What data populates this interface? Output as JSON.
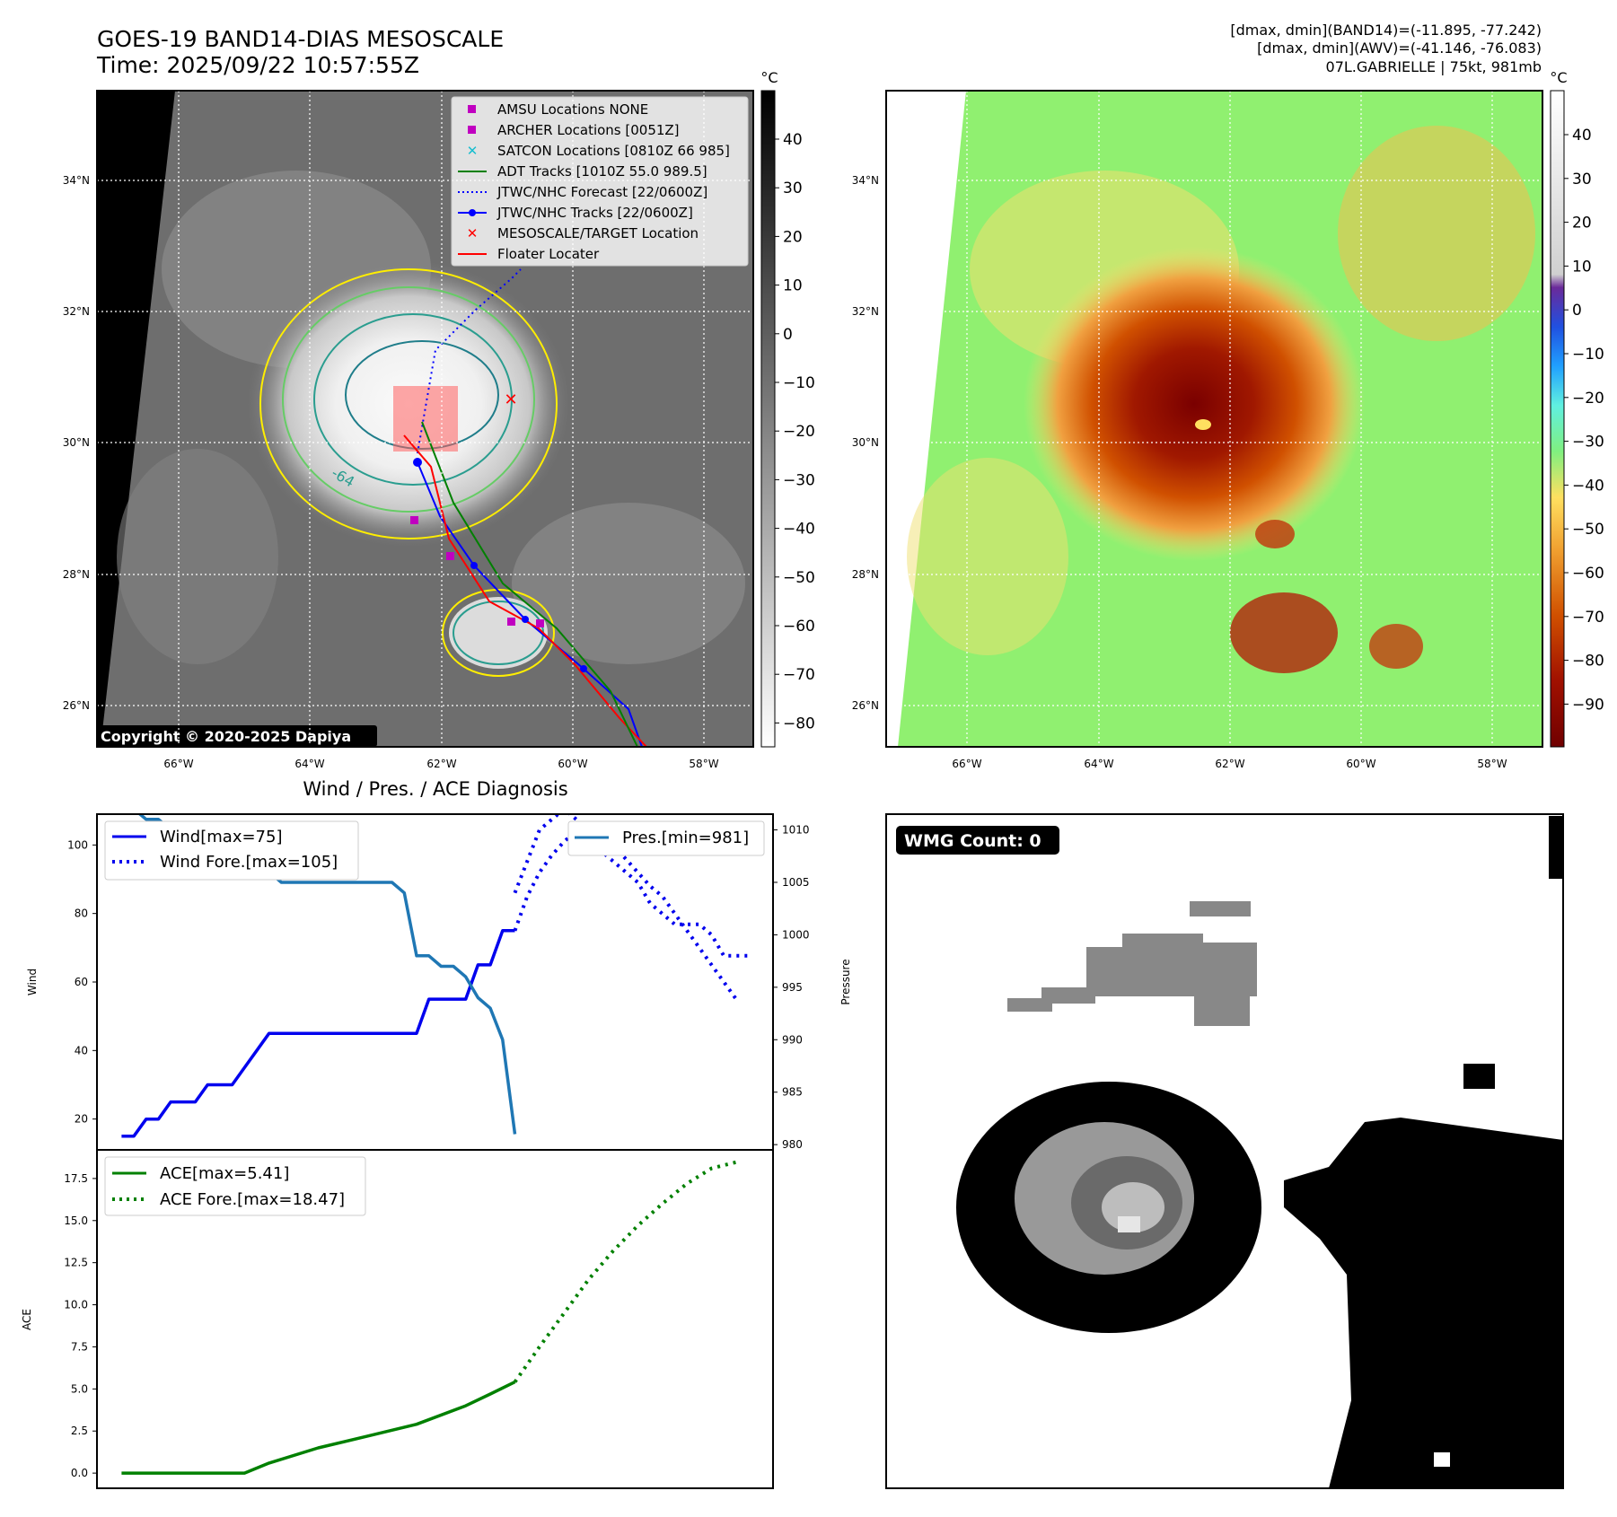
{
  "header": {
    "title": "GOES-19 BAND14-DIAS MESOSCALE",
    "time": "Time: 2025/09/22 10:57:55Z",
    "stats_line1": "[dmax, dmin](BAND14)=(-11.895, -77.242)",
    "stats_line2": "[dmax, dmin](AWV)=(-41.146, -76.083)",
    "stats_line3": "07L.GABRIELLE | 75kt, 981mb"
  },
  "maps": {
    "lon_labels": [
      "66°W",
      "64°W",
      "62°W",
      "60°W",
      "58°W"
    ],
    "lat_labels": [
      "34°N",
      "32°N",
      "30°N",
      "28°N",
      "26°N"
    ],
    "copyright": "Copyright © 2020-2025 Dapiya",
    "contour_label": "-64",
    "legend": [
      {
        "label": "AMSU Locations NONE",
        "marker": "square",
        "color": "#c000c0"
      },
      {
        "label": "ARCHER Locations [0051Z]",
        "marker": "square",
        "color": "#c000c0"
      },
      {
        "label": "SATCON Locations [0810Z 66 985]",
        "marker": "x",
        "color": "#17becf"
      },
      {
        "label": "ADT Tracks [1010Z 55.0 989.5]",
        "marker": "line",
        "color": "#008000"
      },
      {
        "label": "JTWC/NHC Forecast [22/0600Z]",
        "marker": "dotted",
        "color": "#0000ff"
      },
      {
        "label": "JTWC/NHC Tracks [22/0600Z]",
        "marker": "line-dot",
        "color": "#0000ff"
      },
      {
        "label": "MESOSCALE/TARGET Location",
        "marker": "x",
        "color": "#ff0000"
      },
      {
        "label": "Floater Locater",
        "marker": "line",
        "color": "#ff0000"
      }
    ],
    "gray_colorbar": {
      "unit": "°C",
      "ticks": [
        "40",
        "30",
        "20",
        "10",
        "0",
        "−10",
        "−20",
        "−30",
        "−40",
        "−50",
        "−60",
        "−70",
        "−80"
      ]
    },
    "color_colorbar": {
      "unit": "°C",
      "ticks": [
        "40",
        "30",
        "20",
        "10",
        "0",
        "−10",
        "−20",
        "−30",
        "−40",
        "−50",
        "−60",
        "−70",
        "−80",
        "−90"
      ]
    }
  },
  "wmg": {
    "label": "WMG Count: 0"
  },
  "chart_data": [
    {
      "type": "line",
      "title": "Wind / Pres. / ACE Diagnosis",
      "ylabel": "Wind",
      "y2label": "Pressure",
      "ylim": [
        11,
        109
      ],
      "y2lim": [
        979.5,
        1011.5
      ],
      "xlim": [
        -1,
        26.5
      ],
      "yticks": [
        "20",
        "40",
        "60",
        "80",
        "100"
      ],
      "y2ticks": [
        "980",
        "985",
        "990",
        "995",
        "1000",
        "1005",
        "1010"
      ],
      "series": [
        {
          "name": "Wind[max=75]",
          "style": "solid",
          "color": "#0000ee",
          "x": [
            0,
            0.5,
            1,
            1.5,
            2,
            2.5,
            3,
            3.5,
            4,
            4.5,
            5,
            5.5,
            6,
            6.5,
            7,
            7.5,
            8,
            8.5,
            9,
            9.5,
            10,
            10.5,
            11,
            11.5,
            12,
            12.5,
            13,
            13.5,
            14,
            14.5,
            15,
            15.5,
            16
          ],
          "values": [
            15,
            15,
            20,
            20,
            25,
            25,
            25,
            30,
            30,
            30,
            35,
            40,
            45,
            45,
            45,
            45,
            45,
            45,
            45,
            45,
            45,
            45,
            45,
            45,
            45,
            55,
            55,
            55,
            55,
            65,
            65,
            75,
            75
          ]
        },
        {
          "name": "Wind Fore.[max=105]",
          "style": "dotted",
          "color": "#0000ee",
          "x": [
            16,
            16.5,
            17,
            17.5,
            18,
            18.5,
            19,
            19.5,
            20,
            20.5,
            21,
            21.5,
            22,
            22.5,
            23,
            23.5,
            24,
            24.5,
            25
          ],
          "values": [
            75,
            85,
            92,
            97,
            101,
            104,
            105,
            103,
            100,
            96,
            92,
            88,
            85,
            80,
            75,
            70,
            65,
            60,
            55
          ]
        },
        {
          "name": "Pres.[min=981]",
          "style": "solid",
          "color": "#1f77b4",
          "axis": "right",
          "x": [
            0,
            0.5,
            1,
            1.5,
            2,
            2.5,
            3,
            3.5,
            4,
            4.5,
            5,
            5.5,
            6,
            6.5,
            7,
            7.5,
            8,
            8.5,
            9,
            9.5,
            10,
            10.5,
            11,
            11.5,
            12,
            12.5,
            13,
            13.5,
            14,
            14.5,
            15,
            15.5,
            16
          ],
          "values": [
            1012,
            1012,
            1011,
            1011,
            1010,
            1010,
            1009,
            1008,
            1008,
            1008,
            1007,
            1006,
            1006,
            1005,
            1005,
            1005,
            1005,
            1005,
            1005,
            1005,
            1005,
            1005,
            1005,
            1004,
            998,
            998,
            997,
            997,
            996,
            994,
            993,
            990,
            981
          ]
        },
        {
          "name": "",
          "style": "dotted",
          "color": "#0000ee",
          "axis": "right",
          "x": [
            16,
            16.5,
            17,
            17.5,
            18,
            18.5,
            19,
            19.5,
            20,
            20.5,
            21,
            21.5,
            22,
            22.5,
            23,
            23.5,
            24,
            24.5,
            25,
            25.5
          ],
          "values": [
            1004,
            1007,
            1010,
            1011,
            1012,
            1011,
            1009,
            1008,
            1007,
            1006,
            1005,
            1003,
            1002,
            1001,
            1001,
            1001,
            1000,
            998,
            998,
            998
          ]
        }
      ]
    },
    {
      "type": "line",
      "ylabel": "ACE",
      "ylim": [
        -0.9,
        19.2
      ],
      "xlim": [
        -1,
        26.5
      ],
      "yticks": [
        "0.0",
        "2.5",
        "5.0",
        "7.5",
        "10.0",
        "12.5",
        "15.0",
        "17.5"
      ],
      "series": [
        {
          "name": "ACE[max=5.41]",
          "style": "solid",
          "color": "#008000",
          "x": [
            0,
            2,
            4,
            5,
            6,
            8,
            10,
            12,
            14,
            15,
            16
          ],
          "values": [
            0,
            0,
            0,
            0,
            0.6,
            1.5,
            2.2,
            2.9,
            4.0,
            4.7,
            5.41
          ]
        },
        {
          "name": "ACE Fore.[max=18.47]",
          "style": "dotted",
          "color": "#008000",
          "x": [
            16,
            17,
            18,
            19,
            20,
            21,
            22,
            23,
            24,
            25
          ],
          "values": [
            5.41,
            7.5,
            9.5,
            11.5,
            13.2,
            14.7,
            16.0,
            17.2,
            18.1,
            18.47
          ]
        }
      ]
    }
  ]
}
